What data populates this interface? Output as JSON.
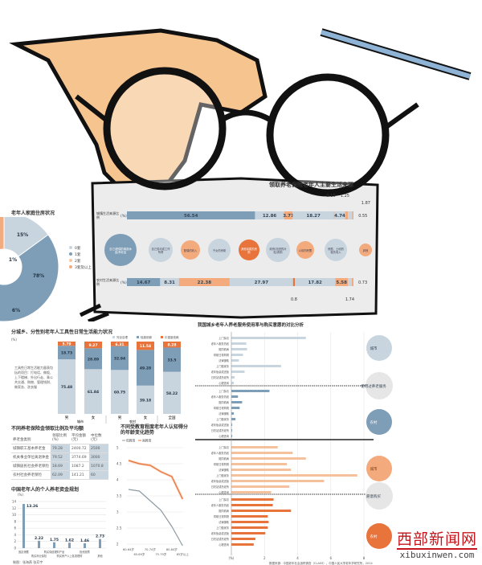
{
  "colors": {
    "blue": "#7e9db6",
    "lightblue": "#c8d5df",
    "orange": "#f3aa7c",
    "deeporange": "#e8743c",
    "grey": "#e6e6e6"
  },
  "main": {
    "title": "领取养老保险老年人主要生活来源",
    "row_labels": [
      "城镇生活来源比例",
      "农村生活来源比例"
    ],
    "unit": "(%)",
    "sources": [
      "自己/配偶的离退休金/养老金",
      "自己劳动或工作所得",
      "配偶的收入",
      "子女的资助",
      "其他亲属的资助",
      "政府/社团的补贴/资助",
      "以前的积蓄",
      "房屋、土地的租赁收入",
      "其他"
    ],
    "urban": [
      56.54,
      12.86,
      3.77,
      18.27,
      0.15,
      4.74,
      1.25,
      1.87,
      0.55
    ],
    "rural": [
      14.67,
      8.31,
      22.38,
      27.97,
      0.8,
      17.82,
      5.58,
      1.74,
      0.73
    ]
  },
  "chart_data": [
    {
      "type": "pie",
      "title": "老年人家庭住房状况",
      "categories": [
        "0套",
        "1套",
        "2套",
        "3套及以上"
      ],
      "values": [
        15,
        78,
        1,
        6
      ]
    },
    {
      "type": "bar",
      "stacked": true,
      "title": "分城乡、分性别老年人工具性日常生活能力状况",
      "ylabel": "(%)",
      "categories": [
        "男",
        "女",
        "男",
        "女",
        "全国"
      ],
      "groups": [
        "城市",
        "农村"
      ],
      "series": [
        {
          "name": "完全自理",
          "values": [
            75.48,
            61.84,
            60.75,
            39.18,
            58.22
          ]
        },
        {
          "name": "轻度依赖",
          "values": [
            18.73,
            28.89,
            32.94,
            49.28,
            33.5
          ]
        },
        {
          "name": "中重度依赖",
          "values": [
            5.79,
            9.27,
            6.31,
            11.54,
            8.28
          ]
        }
      ],
      "note": "工具性日常生活能力量表包括的项目：打电话、做饭、上下楼梯、外出行走、乘公共交通、购物、管理钱财、做家务、洗衣服"
    },
    {
      "type": "table",
      "title": "不同养老保险金领取比例及平均额",
      "columns": [
        "养老金类别",
        "领取比例(%)",
        "平均金额(元)",
        "中位数(元)"
      ],
      "rows": [
        [
          "城镇职工基本养老金",
          "79.28",
          "2400.72",
          "2500"
        ],
        [
          "机关事业单位离退休金",
          "79.52",
          "3774.69",
          "3000"
        ],
        [
          "城镇居民社会养老保险",
          "18.69",
          "1087.2",
          "1070.8"
        ],
        [
          "农村社会养老保险",
          "62.09",
          "141.21",
          "60"
        ]
      ]
    },
    {
      "type": "bar",
      "title": "中国老年人的个人养老资金规划",
      "ylabel": "(%)",
      "ylim": [
        0,
        14
      ],
      "yticks": [
        0,
        2,
        4,
        6,
        8,
        10,
        12,
        14
      ],
      "categories": [
        "固定储蓄",
        "购买商业保险",
        "购买保值理财产品",
        "购买房产以上各类理财",
        "投资股票",
        "其他"
      ],
      "values": [
        13.26,
        2.22,
        1.75,
        1.62,
        1.46,
        2.73
      ]
    },
    {
      "type": "line",
      "title": "不同受教育程度老年人认知得分的年龄变化趋势",
      "ylim": [
        2,
        5
      ],
      "yticks": [
        2,
        2.5,
        3,
        3.5,
        4,
        4.5,
        5
      ],
      "categories": [
        "60-64岁",
        "65-69岁",
        "70-74岁",
        "75-79岁",
        "80-84岁",
        "85岁以上"
      ],
      "series": [
        {
          "name": "低教育",
          "values": [
            3.7,
            3.65,
            3.35,
            3.05,
            2.55,
            1.95
          ]
        },
        {
          "name": "高教育",
          "values": [
            4.6,
            4.5,
            4.45,
            4.25,
            4.1,
            3.4
          ]
        }
      ]
    },
    {
      "type": "bar",
      "orientation": "horizontal",
      "title": "我国城乡老年人养老服务使用率与购买意愿的对比分析",
      "xlabel": "(%)",
      "xlim": [
        0,
        8
      ],
      "xticks": [
        0,
        2,
        4,
        6,
        8
      ],
      "categories": [
        "上门探访",
        "老年人服务热线",
        "陪同看病",
        "帮助日常购物",
        "法律援助",
        "上门做家务",
        "老年饭桌或送饭",
        "日托站或托老所",
        "心理咨询"
      ],
      "groups": [
        {
          "name": "使用过养老服务",
          "series": [
            {
              "name": "城市",
              "values": [
                4.5,
                0.9,
                0.95,
                0.7,
                0.45,
                3.0,
                0.8,
                0.2,
                0.15
              ]
            },
            {
              "name": "农村",
              "values": [
                2.3,
                0.4,
                0.65,
                0.5,
                0.15,
                0.25,
                0.05,
                0.05,
                0.05
              ]
            }
          ]
        },
        {
          "name": "愿意购买",
          "series": [
            {
              "name": "城市",
              "values": [
                2.8,
                3.7,
                4.5,
                3.35,
                3.6,
                7.6,
                5.6,
                3.5,
                2.4
              ]
            },
            {
              "name": "农村",
              "values": [
                2.55,
                2.5,
                3.6,
                2.2,
                2.25,
                2.2,
                2.05,
                1.45,
                1.35
              ]
            }
          ]
        }
      ],
      "source": "数据来源：中国老年社会追踪调查（CLASS），中国人民大学老年学研究所，2014"
    }
  ],
  "credit": "制图：张海燕 张芳宇",
  "logo": {
    "cn": "西部新闻网",
    "en": "xibuxinwen.com"
  }
}
